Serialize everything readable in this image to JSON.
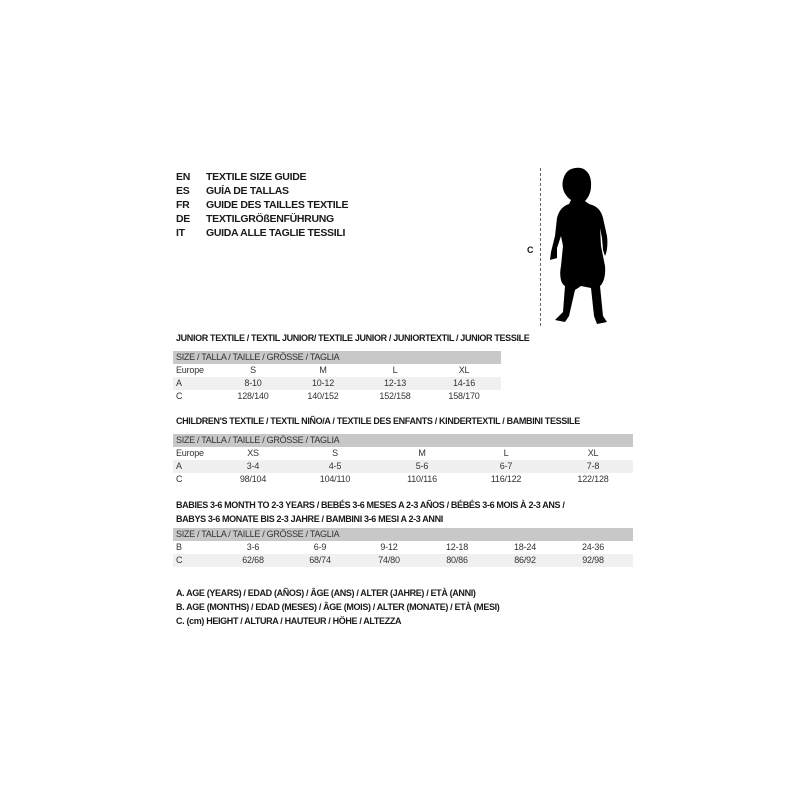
{
  "languages": [
    {
      "code": "EN",
      "text": "TEXTILE SIZE GUIDE"
    },
    {
      "code": "ES",
      "text": "GUÍA DE TALLAS"
    },
    {
      "code": "FR",
      "text": "GUIDE DES TAILLES TEXTILE"
    },
    {
      "code": "DE",
      "text": "TEXTILGRÖßENFÜHRUNG"
    },
    {
      "code": "IT",
      "text": "GUIDA ALLE TAGLIE TESSILI"
    }
  ],
  "figure": {
    "icon": "child-silhouette-icon",
    "measure_label": "C"
  },
  "tables": [
    {
      "title": [
        "JUNIOR TEXTILE / TEXTIL JUNIOR/ TEXTILE JUNIOR / JUNIORTEXTIL / JUNIOR TESSILE"
      ],
      "header": "SIZE / TALLA / TAILLE / GRÖSSE / TAGLIA",
      "rows": [
        {
          "label": "Europe",
          "values": [
            "S",
            "M",
            "L",
            "XL"
          ]
        },
        {
          "label": "A",
          "values": [
            "8-10",
            "10-12",
            "12-13",
            "14-16"
          ]
        },
        {
          "label": "C",
          "values": [
            "128/140",
            "140/152",
            "152/158",
            "158/170"
          ]
        }
      ]
    },
    {
      "title": [
        "CHILDREN'S TEXTILE / TEXTIL NIÑO/A / TEXTILE DES ENFANTS / KINDERTEXTIL / BAMBINI TESSILE"
      ],
      "header": "SIZE / TALLA / TAILLE / GRÖSSE / TAGLIA",
      "rows": [
        {
          "label": "Europe",
          "values": [
            "XS",
            "S",
            "M",
            "L",
            "XL"
          ]
        },
        {
          "label": "A",
          "values": [
            "3-4",
            "4-5",
            "5-6",
            "6-7",
            "7-8"
          ]
        },
        {
          "label": "C",
          "values": [
            "98/104",
            "104/110",
            "110/116",
            "116/122",
            "122/128"
          ]
        }
      ]
    },
    {
      "title": [
        "BABIES 3-6 MONTH TO 2-3 YEARS / BEBÉS 3-6 MESES A 2-3 AÑOS / BÉBÉS 3-6 MOIS À 2-3 ANS /",
        "BABYS 3-6 MONATE BIS 2-3 JAHRE / BAMBINI 3-6 MESI A 2-3 ANNI"
      ],
      "header": "SIZE / TALLA / TAILLE / GRÖSSE / TAGLIA",
      "rows": [
        {
          "label": "B",
          "values": [
            "3-6",
            "6-9",
            "9-12",
            "12-18",
            "18-24",
            "24-36"
          ]
        },
        {
          "label": "C",
          "values": [
            "62/68",
            "68/74",
            "74/80",
            "80/86",
            "86/92",
            "92/98"
          ]
        }
      ]
    }
  ],
  "notes": [
    "A. AGE (YEARS) / EDAD (AÑOS) / ÂGE (ANS) / ALTER (JAHRE) / ETÀ (ANNI)",
    "B. AGE (MONTHS) / EDAD (MESES) / ÂGE (MOIS) / ALTER (MONATE) / ETÀ (MESI)",
    "C. (cm) HEIGHT / ALTURA / HAUTEUR / HÖHE / ALTEZZA"
  ],
  "colors": {
    "header_bg": "#c8c8c8",
    "alt_row_bg": "#f0f0f0",
    "text": "#1a1a1a"
  }
}
